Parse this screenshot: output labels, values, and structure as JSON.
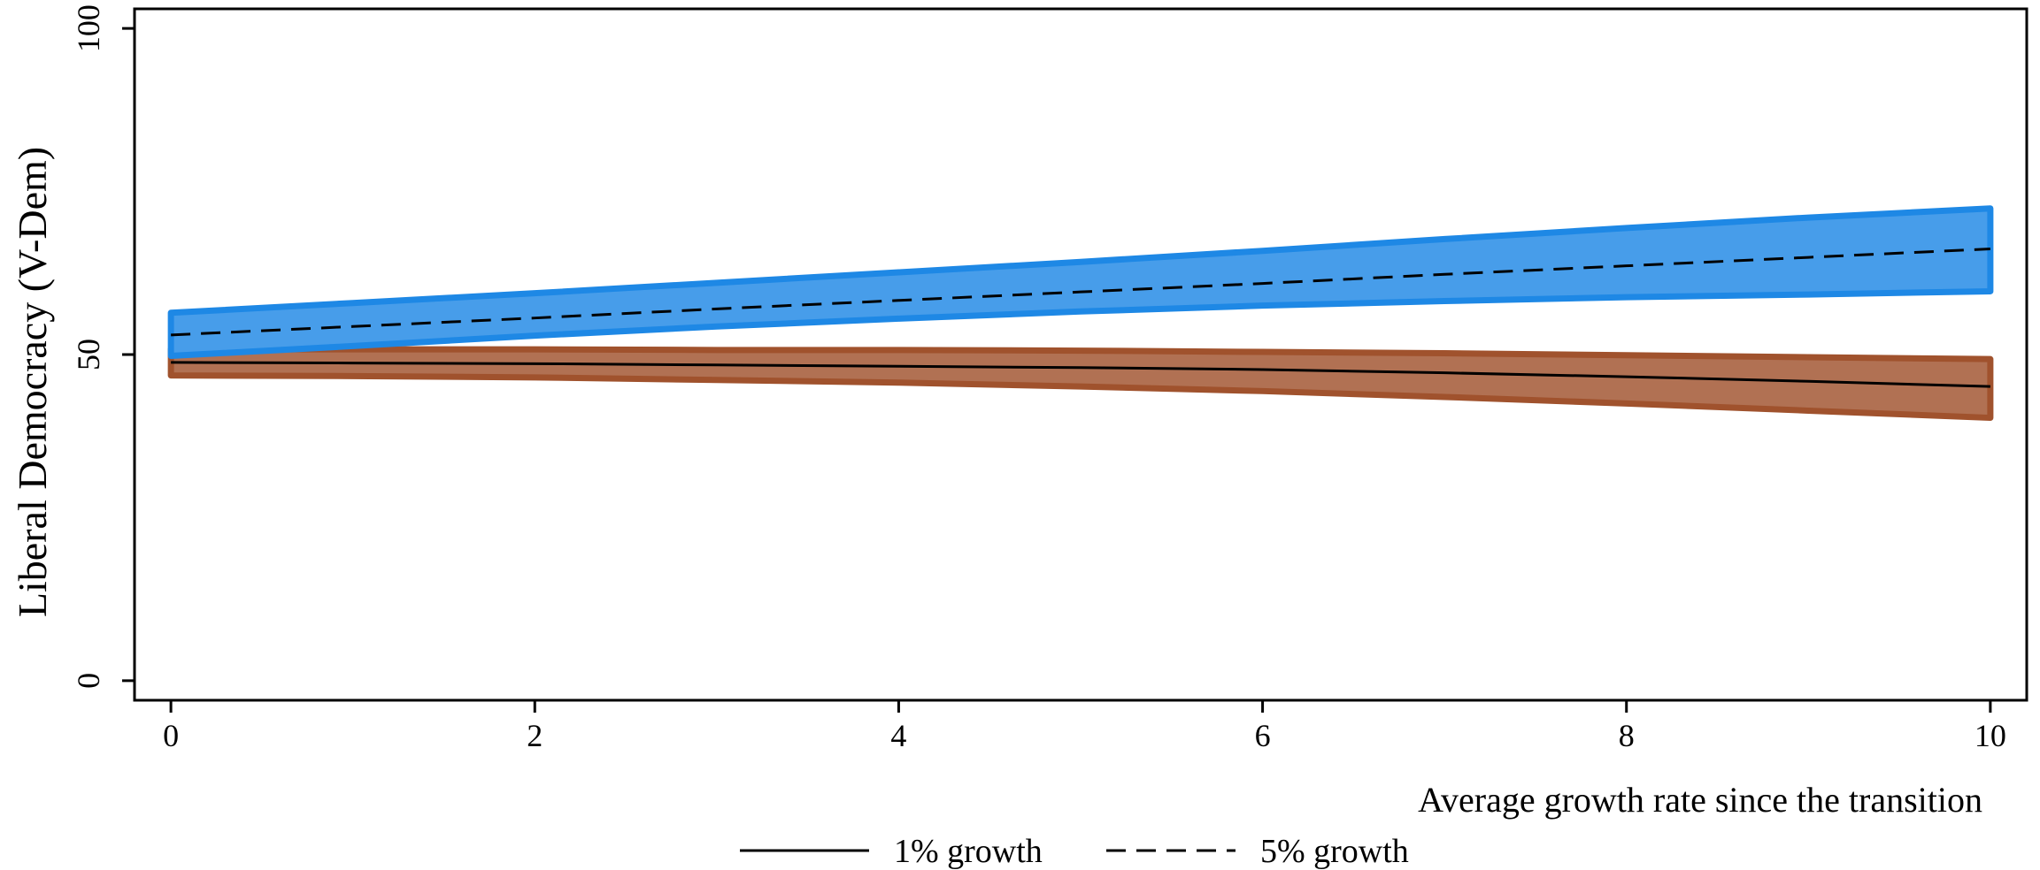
{
  "chart_data": {
    "type": "line",
    "title": "",
    "xlabel": "Average growth rate since the transition",
    "ylabel": "Liberal Democracy (V-Dem)",
    "xlim": [
      -0.2,
      10.2
    ],
    "ylim": [
      -3,
      103
    ],
    "xticks": [
      0,
      2,
      4,
      6,
      8,
      10
    ],
    "yticks": [
      0,
      50,
      100
    ],
    "grid": false,
    "legend_position": "bottom-center",
    "x": [
      0,
      1,
      2,
      3,
      4,
      5,
      6,
      7,
      8,
      9,
      10
    ],
    "series": [
      {
        "name": "1% growth",
        "line_style": "solid",
        "band_color": "#A0522D",
        "values": [
          48.8,
          48.7,
          48.6,
          48.4,
          48.2,
          48.0,
          47.7,
          47.2,
          46.6,
          45.9,
          45.1
        ],
        "ci_lower": [
          46.8,
          46.7,
          46.5,
          46.1,
          45.7,
          45.1,
          44.4,
          43.5,
          42.5,
          41.4,
          40.3
        ],
        "ci_upper": [
          50.8,
          50.8,
          50.8,
          50.7,
          50.7,
          50.6,
          50.4,
          50.2,
          49.9,
          49.6,
          49.3
        ]
      },
      {
        "name": "5% growth",
        "line_style": "dashed",
        "band_color": "#1E88E5",
        "values": [
          53.0,
          54.3,
          55.6,
          57.0,
          58.3,
          59.6,
          60.9,
          62.3,
          63.6,
          64.9,
          66.2
        ],
        "ci_lower": [
          49.8,
          51.3,
          52.9,
          54.3,
          55.5,
          56.6,
          57.5,
          58.2,
          58.8,
          59.2,
          59.7
        ],
        "ci_upper": [
          56.4,
          57.9,
          59.4,
          61.0,
          62.6,
          64.2,
          65.9,
          67.7,
          69.4,
          71.0,
          72.4
        ]
      }
    ]
  }
}
